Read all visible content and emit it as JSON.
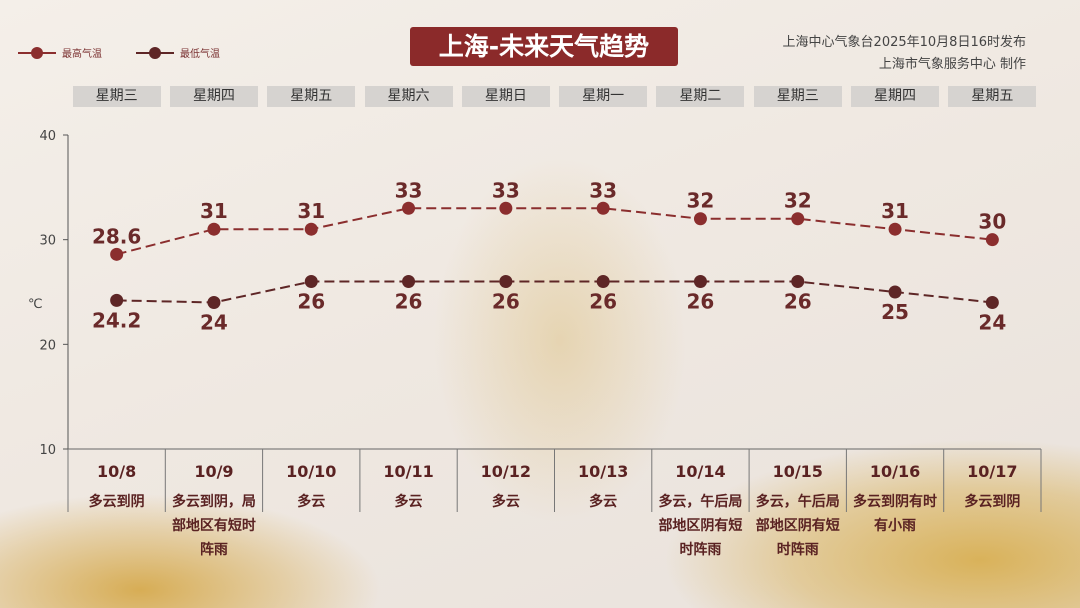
{
  "title": "上海-未来天气趋势",
  "publisher": {
    "line1": "上海中心气象台2025年10月8日16时发布",
    "line2": "上海市气象服务中心 制作"
  },
  "colors": {
    "high": "#8b2e2e",
    "low": "#5e2626",
    "title_bg": "#8b2a2a"
  },
  "chart_data": {
    "type": "line",
    "unit_label": "℃",
    "ylim": [
      10,
      40
    ],
    "yticks": [
      "10",
      "20",
      "30",
      "40"
    ],
    "legend_position": "top-left",
    "weekdays": [
      "星期三",
      "星期四",
      "星期五",
      "星期六",
      "星期日",
      "星期一",
      "星期二",
      "星期三",
      "星期四",
      "星期五"
    ],
    "categories": [
      "10/8",
      "10/9",
      "10/10",
      "10/11",
      "10/12",
      "10/13",
      "10/14",
      "10/15",
      "10/16",
      "10/17"
    ],
    "weather": [
      "多云到阴",
      "多云到阴，局部地区有短时阵雨",
      "多云",
      "多云",
      "多云",
      "多云",
      "多云，午后局部地区阴有短时阵雨",
      "多云，午后局部地区阴有短时阵雨",
      "多云到阴有时有小雨",
      "多云到阴"
    ],
    "series": [
      {
        "name": "最高气温",
        "values": [
          28.6,
          31,
          31,
          33,
          33,
          33,
          32,
          32,
          31,
          30
        ],
        "labels": [
          "28.6",
          "31",
          "31",
          "33",
          "33",
          "33",
          "32",
          "32",
          "31",
          "30"
        ]
      },
      {
        "name": "最低气温",
        "values": [
          24.2,
          24,
          26,
          26,
          26,
          26,
          26,
          26,
          25,
          24
        ],
        "labels": [
          "24.2",
          "24",
          "26",
          "26",
          "26",
          "26",
          "26",
          "26",
          "25",
          "24"
        ]
      }
    ]
  }
}
